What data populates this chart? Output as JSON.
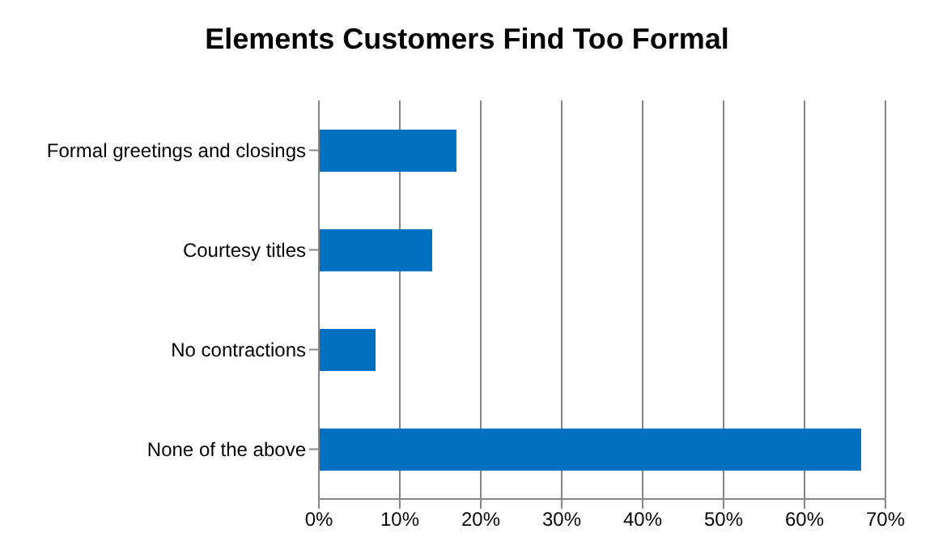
{
  "chart_data": {
    "type": "bar",
    "title": "Elements Customers Find Too Formal",
    "orientation": "horizontal",
    "categories": [
      "Formal greetings and closings",
      "Courtesy titles",
      "No contractions",
      "None of the above"
    ],
    "values": [
      17,
      14,
      7,
      67
    ],
    "color": "#0070c0",
    "xlim": [
      0,
      70
    ],
    "xticks": [
      {
        "value": 0,
        "label": "0%"
      },
      {
        "value": 10,
        "label": "10%"
      },
      {
        "value": 20,
        "label": "20%"
      },
      {
        "value": 30,
        "label": "30%"
      },
      {
        "value": 40,
        "label": "40%"
      },
      {
        "value": 50,
        "label": "50%"
      },
      {
        "value": 60,
        "label": "60%"
      },
      {
        "value": 70,
        "label": "70%"
      }
    ],
    "grid": "x"
  }
}
